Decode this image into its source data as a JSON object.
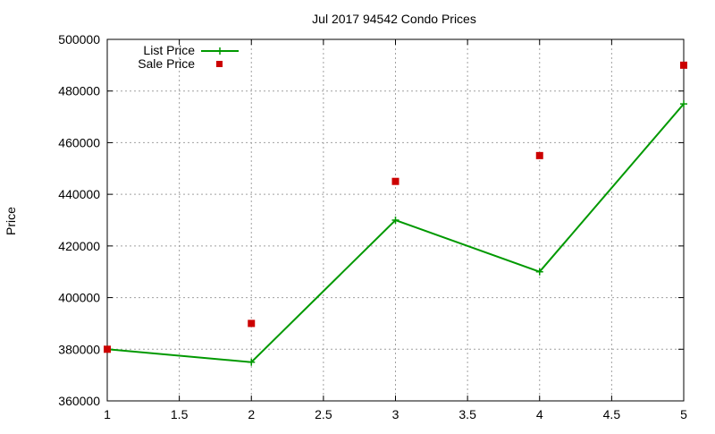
{
  "chart_data": {
    "type": "line",
    "title": "Jul 2017 94542 Condo Prices",
    "xlabel": "",
    "ylabel": "Price",
    "xlim": [
      1,
      5
    ],
    "ylim": [
      360000,
      500000
    ],
    "x_ticks": [
      "1",
      "1.5",
      "2",
      "2.5",
      "3",
      "3.5",
      "4",
      "4.5",
      "5"
    ],
    "y_ticks": [
      "360000",
      "380000",
      "400000",
      "420000",
      "440000",
      "460000",
      "480000",
      "500000"
    ],
    "grid": true,
    "legend_position": "top-left",
    "series": [
      {
        "name": "List Price",
        "style": "line-with-plus-markers",
        "color": "#009900",
        "x": [
          1,
          2,
          3,
          4,
          5
        ],
        "y": [
          380000,
          375000,
          430000,
          410000,
          475000
        ]
      },
      {
        "name": "Sale Price",
        "style": "square-markers",
        "color": "#cc0000",
        "x": [
          1,
          2,
          3,
          4,
          5
        ],
        "y": [
          380000,
          390000,
          445000,
          455000,
          490000
        ]
      }
    ]
  }
}
